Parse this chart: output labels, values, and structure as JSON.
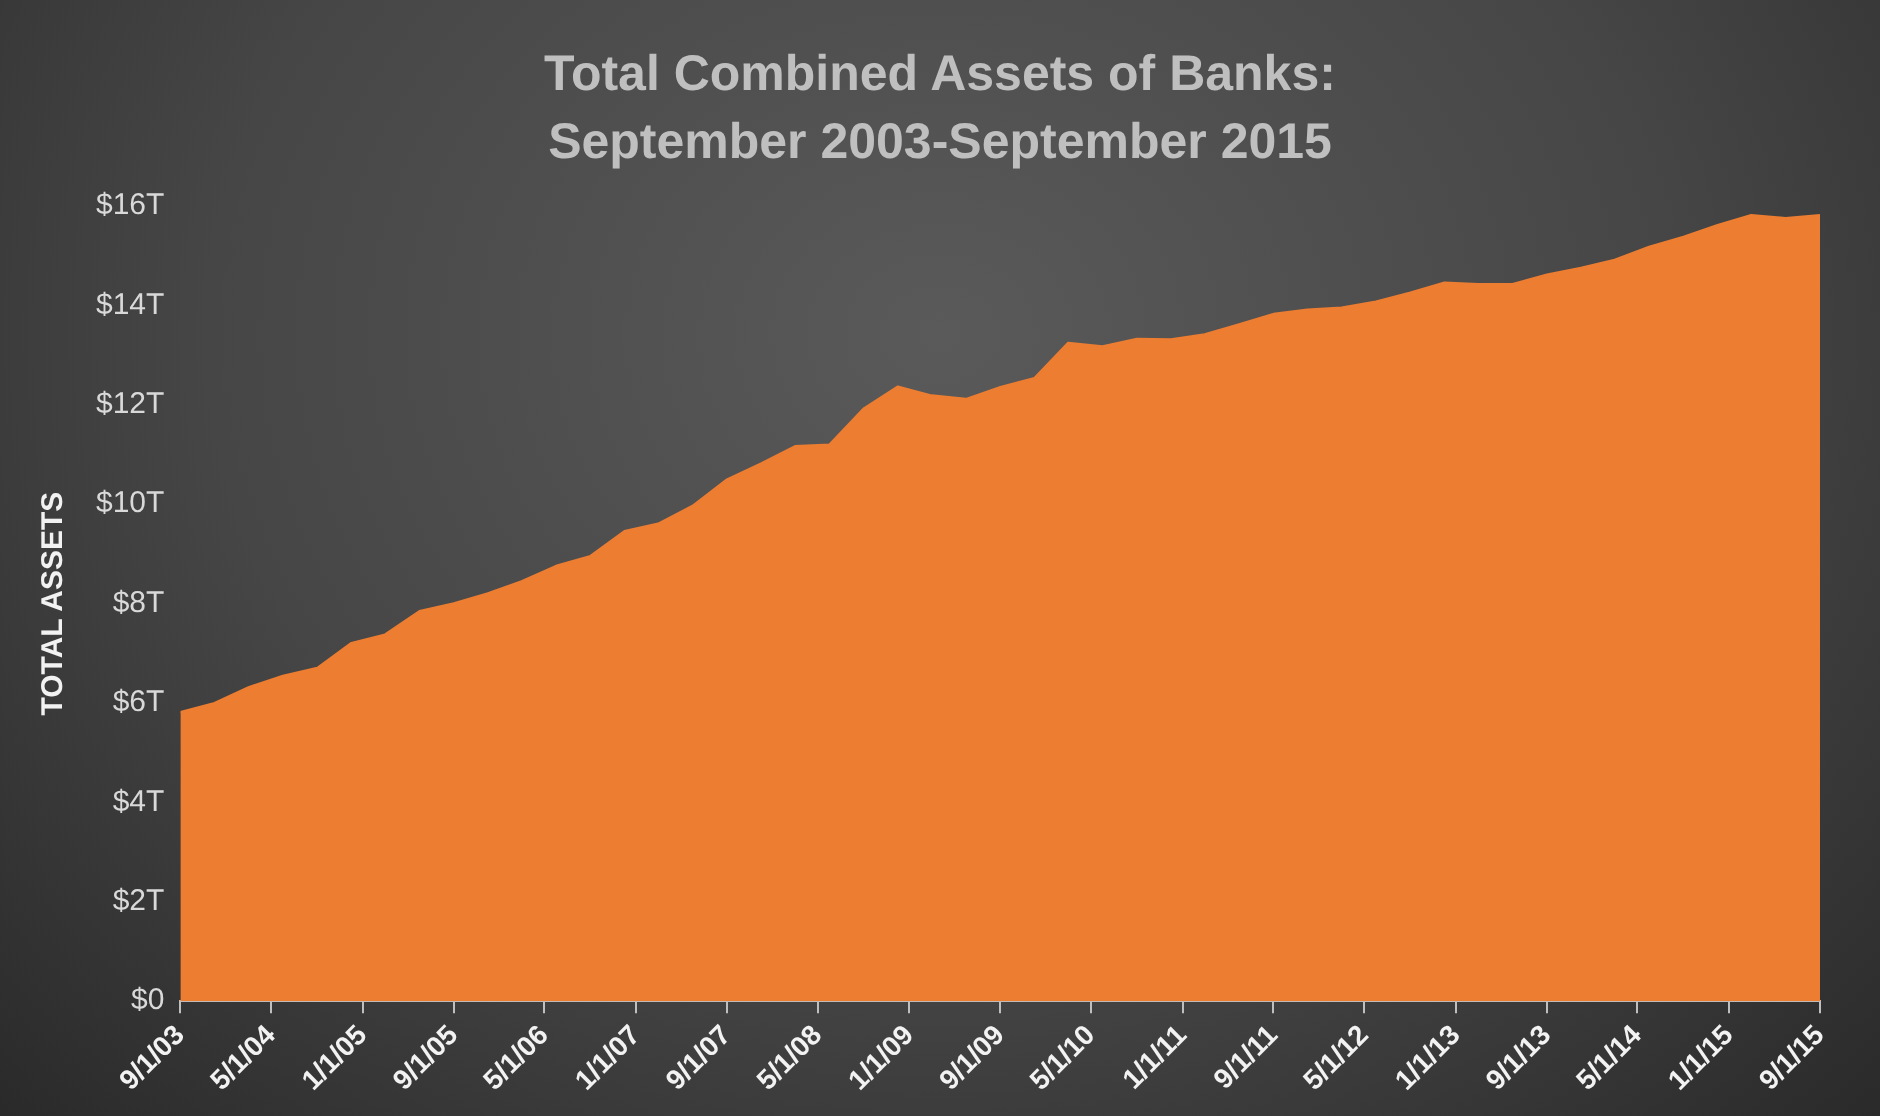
{
  "chart_data": {
    "type": "area",
    "title": "Total Combined Assets of Banks: September 2003-September 2015",
    "ylabel": "TOTAL ASSETS",
    "x": [
      "2003-09",
      "2003-12",
      "2004-03",
      "2004-06",
      "2004-09",
      "2004-12",
      "2005-03",
      "2005-06",
      "2005-09",
      "2005-12",
      "2006-03",
      "2006-06",
      "2006-09",
      "2006-12",
      "2007-03",
      "2007-06",
      "2007-09",
      "2007-12",
      "2008-03",
      "2008-06",
      "2008-09",
      "2008-12",
      "2009-03",
      "2009-06",
      "2009-09",
      "2009-12",
      "2010-03",
      "2010-06",
      "2010-09",
      "2010-12",
      "2011-03",
      "2011-06",
      "2011-09",
      "2011-12",
      "2012-03",
      "2012-06",
      "2012-09",
      "2012-12",
      "2013-03",
      "2013-06",
      "2013-09",
      "2013-12",
      "2014-03",
      "2014-06",
      "2014-09",
      "2014-12",
      "2015-03",
      "2015-06",
      "2015-09"
    ],
    "series": [
      {
        "color": "#ed7d31",
        "values": [
          5.82,
          6.0,
          6.32,
          6.55,
          6.71,
          7.21,
          7.38,
          7.85,
          8.01,
          8.21,
          8.45,
          8.76,
          8.96,
          9.46,
          9.61,
          9.97,
          10.5,
          10.82,
          11.17,
          11.2,
          11.93,
          12.37,
          12.19,
          12.12,
          12.36,
          12.54,
          13.25,
          13.18,
          13.33,
          13.32,
          13.42,
          13.62,
          13.83,
          13.92,
          13.96,
          14.08,
          14.26,
          14.46,
          14.43,
          14.43,
          14.62,
          14.76,
          14.92,
          15.18,
          15.38,
          15.62,
          15.82,
          15.76,
          15.82
        ]
      }
    ],
    "xlim": [
      "2003-09-01",
      "2015-09-01"
    ],
    "xticks": [
      {
        "value": "2003-09-01",
        "label": "9/1/03"
      },
      {
        "value": "2004-05-01",
        "label": "5/1/04"
      },
      {
        "value": "2005-01-01",
        "label": "1/1/05"
      },
      {
        "value": "2005-09-01",
        "label": "9/1/05"
      },
      {
        "value": "2006-05-01",
        "label": "5/1/06"
      },
      {
        "value": "2007-01-01",
        "label": "1/1/07"
      },
      {
        "value": "2007-09-01",
        "label": "9/1/07"
      },
      {
        "value": "2008-05-01",
        "label": "5/1/08"
      },
      {
        "value": "2009-01-01",
        "label": "1/1/09"
      },
      {
        "value": "2009-09-01",
        "label": "9/1/09"
      },
      {
        "value": "2010-05-01",
        "label": "5/1/10"
      },
      {
        "value": "2011-01-01",
        "label": "1/1/11"
      },
      {
        "value": "2011-09-01",
        "label": "9/1/11"
      },
      {
        "value": "2012-05-01",
        "label": "5/1/12"
      },
      {
        "value": "2013-01-01",
        "label": "1/1/13"
      },
      {
        "value": "2013-09-01",
        "label": "9/1/13"
      },
      {
        "value": "2014-05-01",
        "label": "5/1/14"
      },
      {
        "value": "2015-01-01",
        "label": "1/1/15"
      },
      {
        "value": "2015-09-01",
        "label": "9/1/15"
      }
    ],
    "ylim": [
      0,
      16
    ],
    "yticks": [
      {
        "value": 0,
        "label": "$0"
      },
      {
        "value": 2,
        "label": "$2T"
      },
      {
        "value": 4,
        "label": "$4T"
      },
      {
        "value": 6,
        "label": "$6T"
      },
      {
        "value": 8,
        "label": "$8T"
      },
      {
        "value": 10,
        "label": "$10T"
      },
      {
        "value": 12,
        "label": "$12T"
      },
      {
        "value": 14,
        "label": "$14T"
      },
      {
        "value": 16,
        "label": "$16T"
      }
    ],
    "marker": "none",
    "legend": false
  }
}
